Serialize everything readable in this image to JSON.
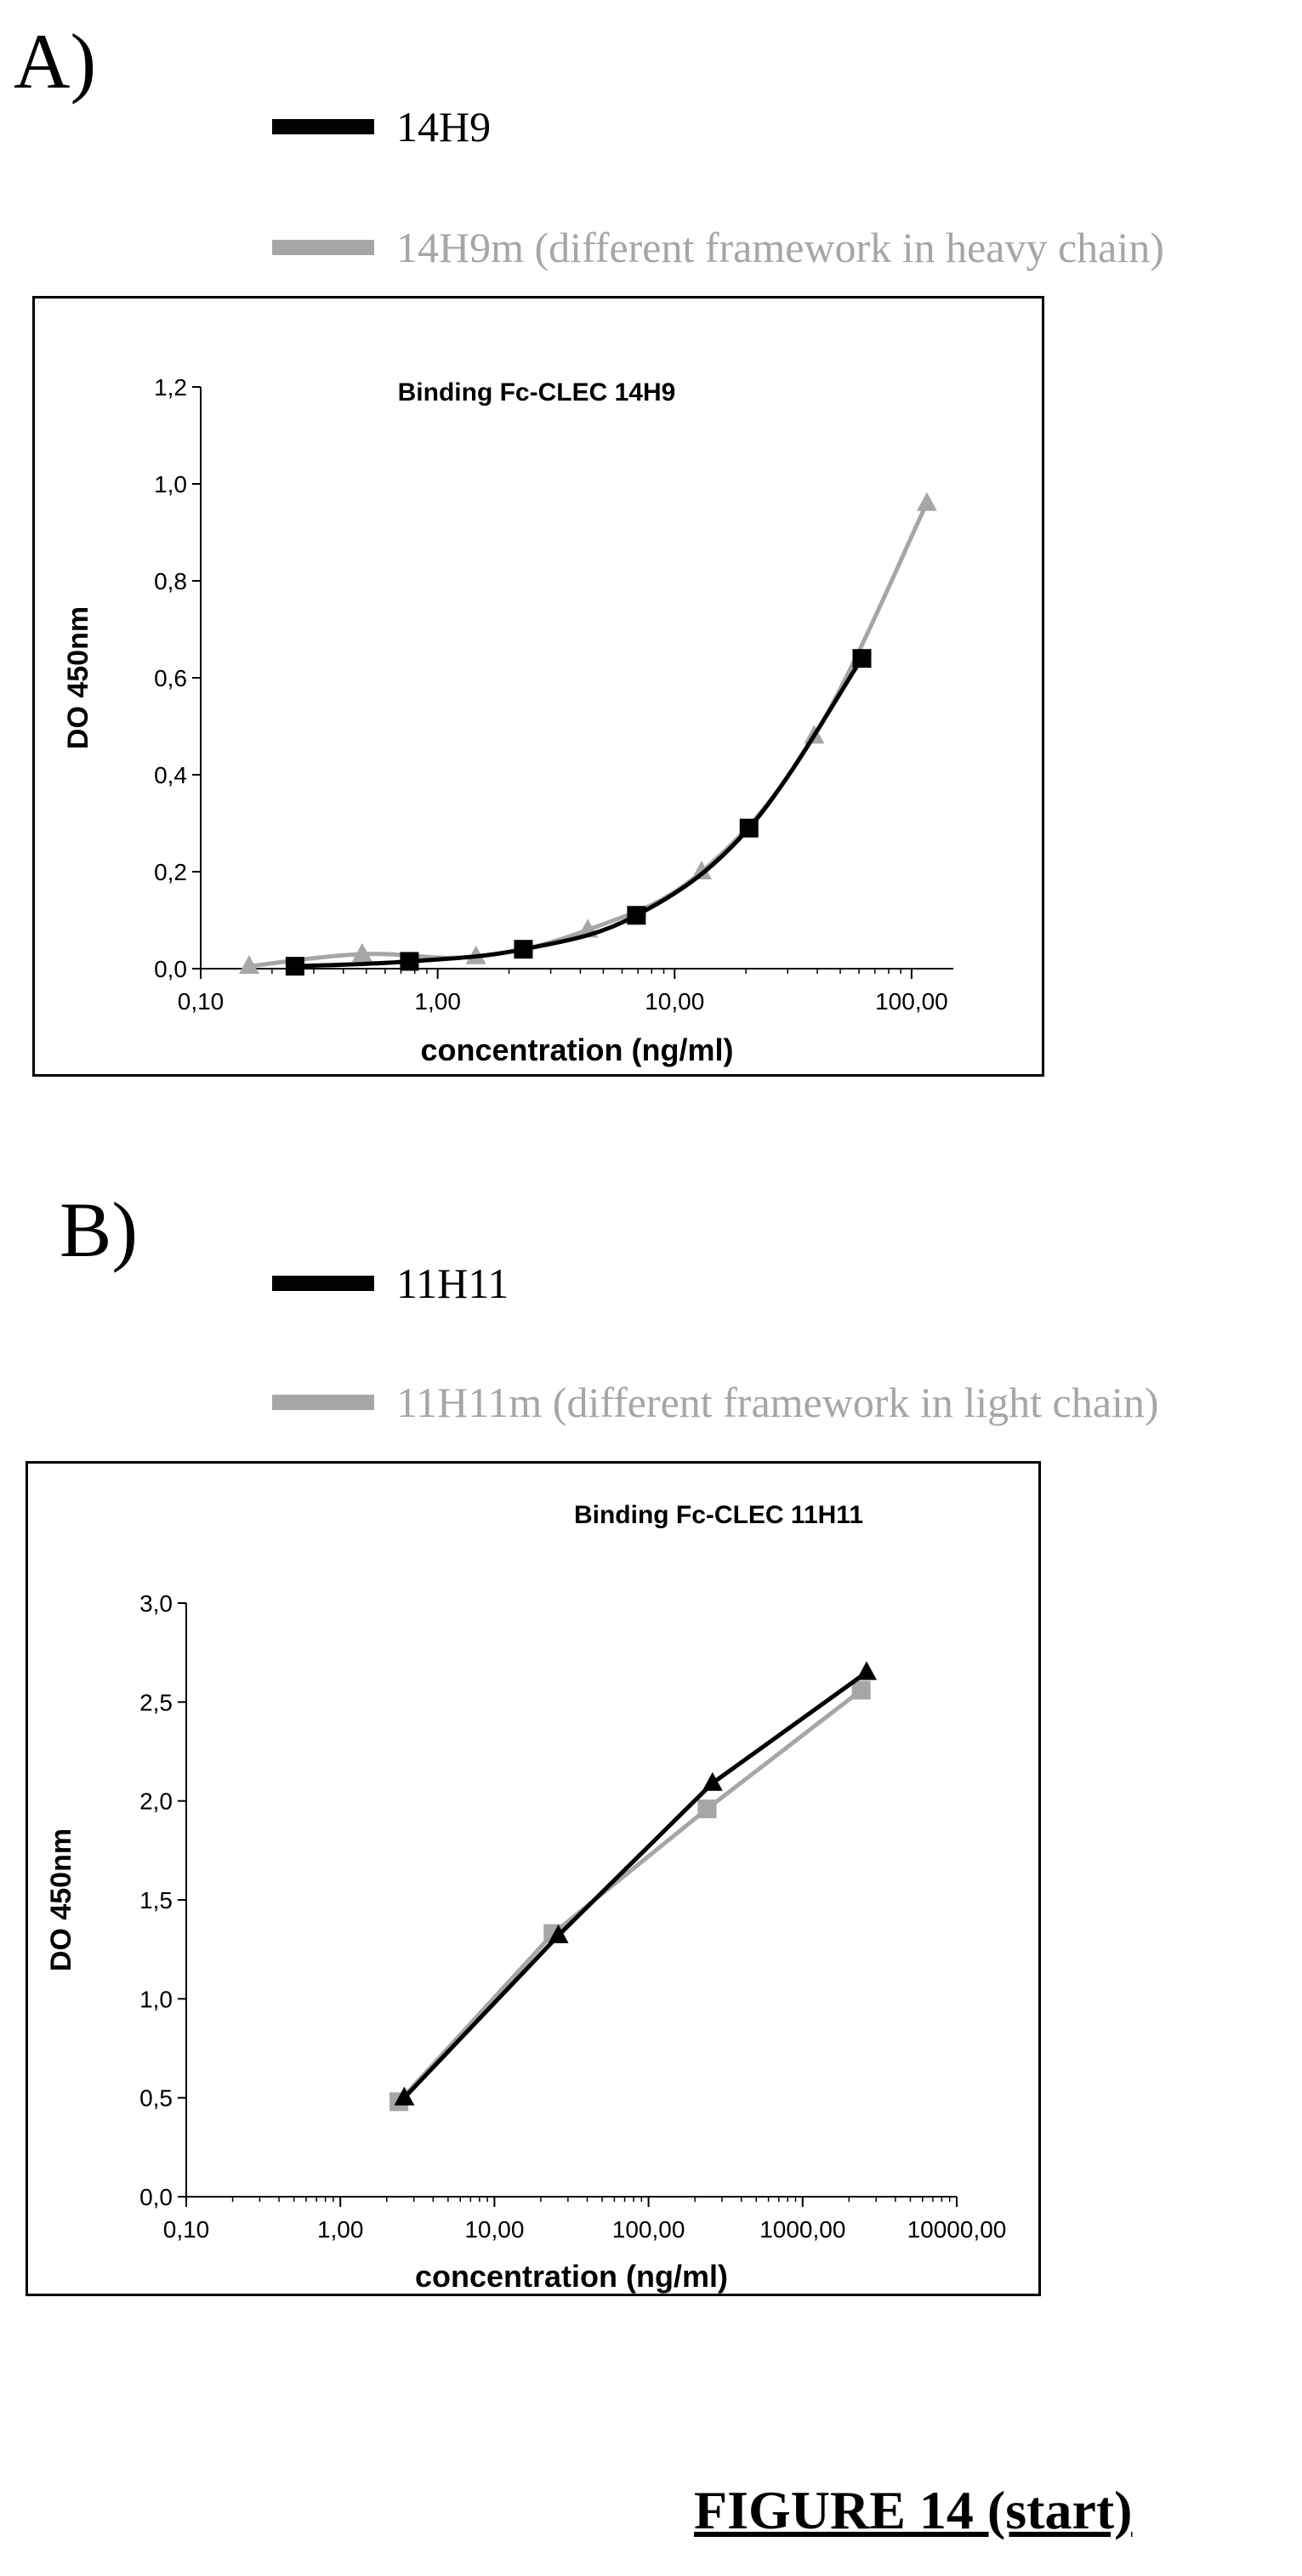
{
  "panels": [
    {
      "label": "A)",
      "legend": [
        {
          "name": "14H9",
          "color": "#000000"
        },
        {
          "name": "14H9m (different framework in heavy chain)",
          "color": "#a6a6a6"
        }
      ]
    },
    {
      "label": "B)",
      "legend": [
        {
          "name": "11H11",
          "color": "#000000"
        },
        {
          "name": "11H11m (different framework in light chain)",
          "color": "#a6a6a6"
        }
      ]
    }
  ],
  "caption": "FIGURE 14 (start)",
  "chart_data": [
    {
      "type": "line",
      "title": "Binding Fc-CLEC 14H9",
      "xlabel": "concentration (ng/ml)",
      "ylabel": "DO 450nm",
      "xscale": "log",
      "xlim": [
        0.1,
        150
      ],
      "ylim": [
        0,
        1.2
      ],
      "xticks": [
        0.1,
        1,
        10,
        100
      ],
      "xtick_labels": [
        "0,10",
        "1,00",
        "10,00",
        "100,00"
      ],
      "yticks": [
        0,
        0.2,
        0.4,
        0.6,
        0.8,
        1.0,
        1.2
      ],
      "ytick_labels": [
        "0,0",
        "0,2",
        "0,4",
        "0,6",
        "0,8",
        "1,0",
        "1,2"
      ],
      "grid": false,
      "series": [
        {
          "name": "14H9",
          "color": "#000000",
          "marker": "square",
          "x": [
            0.25,
            0.76,
            2.3,
            6.9,
            20.6,
            61.7
          ],
          "y": [
            0.005,
            0.015,
            0.04,
            0.11,
            0.29,
            0.64
          ]
        },
        {
          "name": "14H9m (different framework in heavy chain)",
          "color": "#a6a6a6",
          "marker": "triangle",
          "x": [
            0.16,
            0.48,
            1.45,
            4.3,
            13.0,
            38.8,
            116
          ],
          "y": [
            0.005,
            0.03,
            0.025,
            0.08,
            0.2,
            0.48,
            0.96
          ]
        }
      ]
    },
    {
      "type": "line",
      "title": "Binding Fc-CLEC 11H11",
      "xlabel": "concentration (ng/ml)",
      "ylabel": "DO 450nm",
      "xscale": "log",
      "xlim": [
        0.1,
        10000
      ],
      "ylim": [
        0,
        3.0
      ],
      "xticks": [
        0.1,
        1,
        10,
        100,
        1000,
        10000
      ],
      "xtick_labels": [
        "0,10",
        "1,00",
        "10,00",
        "100,00",
        "1000,00",
        "10000,00"
      ],
      "yticks": [
        0,
        0.5,
        1.0,
        1.5,
        2.0,
        2.5,
        3.0
      ],
      "ytick_labels": [
        "0,0",
        "0,5",
        "1,0",
        "1,5",
        "2,0",
        "2,5",
        "3,0"
      ],
      "grid": false,
      "series": [
        {
          "name": "11H11",
          "color": "#000000",
          "marker": "triangle",
          "x": [
            2.6,
            26,
            260,
            2600
          ],
          "y": [
            0.5,
            1.32,
            2.09,
            2.65
          ]
        },
        {
          "name": "11H11m (different framework in light chain)",
          "color": "#a6a6a6",
          "marker": "square",
          "x": [
            2.4,
            24,
            240,
            2400
          ],
          "y": [
            0.48,
            1.33,
            1.96,
            2.56
          ]
        }
      ]
    }
  ]
}
